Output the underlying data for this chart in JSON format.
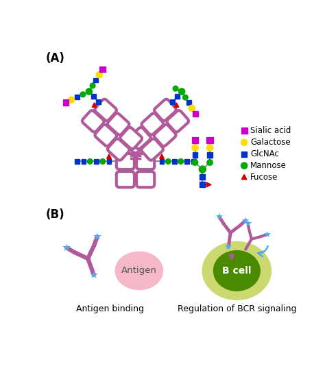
{
  "bg_color": "#ffffff",
  "antibody_color": "#b05a9a",
  "ab_lw": 3.0,
  "sialic_color": "#cc00cc",
  "galactose_color": "#ffdd00",
  "glcnac_color": "#0033cc",
  "mannose_color": "#00aa00",
  "fucose_color": "#cc0000",
  "star_color": "#55aaee",
  "label_A": "(A)",
  "label_B": "(B)",
  "text_antigen_binding": "Antigen binding",
  "text_bcr": "Regulation of BCR signaling",
  "text_antigen": "Antigen",
  "text_bcell": "B cell",
  "legend_items": [
    {
      "shape": "diamond",
      "color": "#cc00cc",
      "label": "Sialic acid"
    },
    {
      "shape": "circle",
      "color": "#ffdd00",
      "label": "Galactose"
    },
    {
      "shape": "square",
      "color": "#0033cc",
      "label": "GlcNAc"
    },
    {
      "shape": "circle",
      "color": "#00aa00",
      "label": "Mannose"
    },
    {
      "shape": "triangle",
      "color": "#cc0000",
      "label": "Fucose"
    }
  ]
}
